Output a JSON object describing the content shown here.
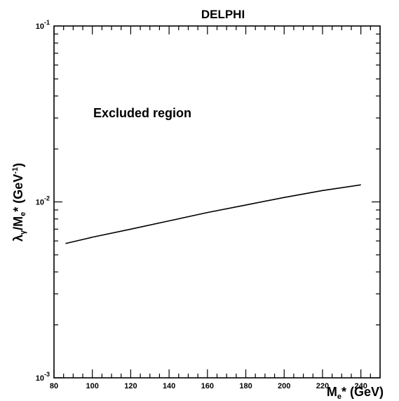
{
  "chart_data": {
    "type": "line",
    "title": "DELPHI",
    "xlabel": "M_e* (GeV)",
    "ylabel": "λ_γ/M_e* (GeV⁻¹)",
    "xlim": [
      80,
      250
    ],
    "ylim": [
      0.001,
      0.1
    ],
    "yscale": "log",
    "x_ticks": [
      80,
      100,
      120,
      140,
      160,
      180,
      200,
      220,
      240
    ],
    "y_ticks": [
      {
        "value": 0.001,
        "base": "10",
        "exp": "-3"
      },
      {
        "value": 0.01,
        "base": "10",
        "exp": "-2"
      },
      {
        "value": 0.1,
        "base": "10",
        "exp": "-1"
      }
    ],
    "annotation": "Excluded region",
    "grid": false,
    "series": [
      {
        "x": [
          86,
          100,
          120,
          140,
          160,
          180,
          200,
          220,
          240
        ],
        "y": [
          0.0058,
          0.0063,
          0.007,
          0.0078,
          0.0087,
          0.0096,
          0.0106,
          0.0116,
          0.0125
        ]
      }
    ]
  }
}
